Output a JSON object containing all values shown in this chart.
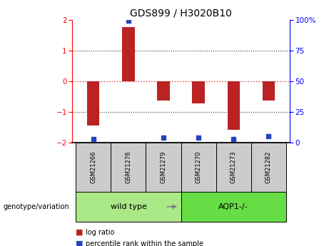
{
  "title": "GDS899 / H3020B10",
  "samples": [
    "GSM21266",
    "GSM21276",
    "GSM21279",
    "GSM21270",
    "GSM21273",
    "GSM21282"
  ],
  "log_ratios": [
    -1.45,
    1.75,
    -0.62,
    -0.72,
    -1.58,
    -0.62
  ],
  "percentile_ranks": [
    3,
    99,
    4,
    4,
    3,
    5
  ],
  "groups": [
    {
      "label": "wild type",
      "samples": [
        0,
        1,
        2
      ],
      "color": "#aae888"
    },
    {
      "label": "AQP1-/-",
      "samples": [
        3,
        4,
        5
      ],
      "color": "#66dd44"
    }
  ],
  "ylim": [
    -2,
    2
  ],
  "yticks_left": [
    -2,
    -1,
    0,
    1,
    2
  ],
  "yticks_right": [
    0,
    25,
    50,
    75,
    100
  ],
  "hline_zero_color": "#dd3333",
  "hline_dotted_color": "#333333",
  "bar_color_red": "#bb2222",
  "dot_color_blue": "#2244bb",
  "sample_box_color": "#cccccc",
  "legend_red_label": "log ratio",
  "legend_blue_label": "percentile rank within the sample",
  "genotype_label": "genotype/variation",
  "background_color": "#ffffff",
  "bar_width": 0.35
}
